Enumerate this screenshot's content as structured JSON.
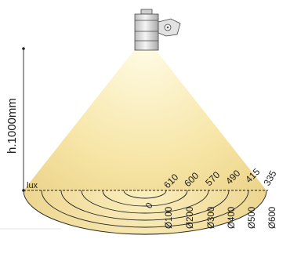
{
  "diagram": {
    "height_label": "h.1000mm",
    "lux_label": "lux",
    "center_label": "0",
    "lux_values": [
      "610",
      "600",
      "570",
      "490",
      "415",
      "335"
    ],
    "diameters": [
      "Ø100",
      "Ø200",
      "Ø300",
      "Ø400",
      "Ø500",
      "Ø600"
    ]
  },
  "colors": {
    "beam_center": "#fff5c8",
    "beam_edge": "#ead28a",
    "fixture_body": "#d9d9d9",
    "line": "#222222"
  }
}
